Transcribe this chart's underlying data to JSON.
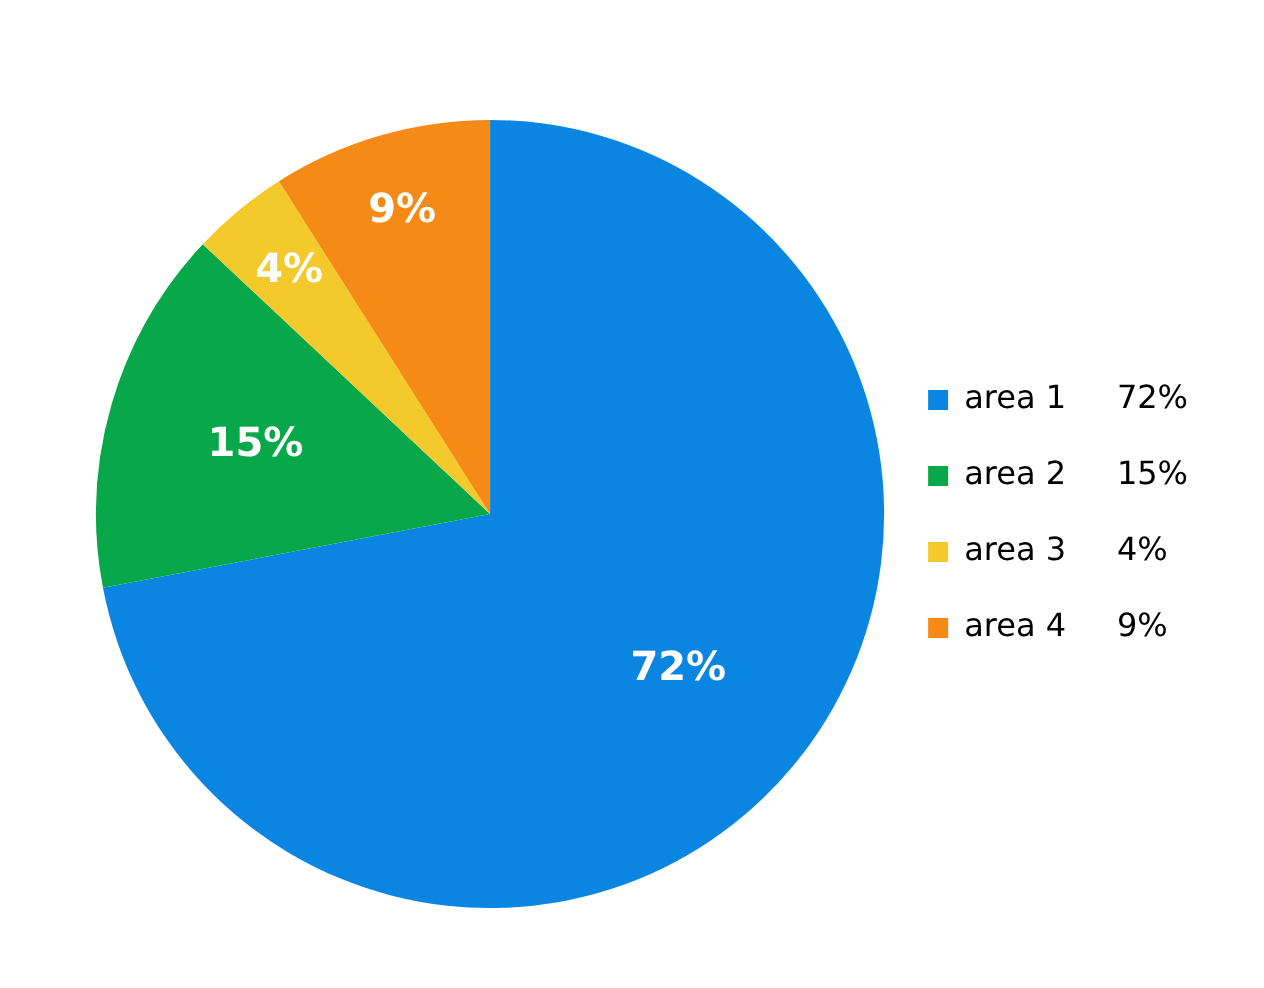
{
  "chart_data": {
    "type": "pie",
    "categories": [
      "area 1",
      "area 2",
      "area 3",
      "area 4"
    ],
    "values": [
      72,
      15,
      4,
      9
    ],
    "colors": [
      "#0a86e2",
      "#08a84a",
      "#f4c92c",
      "#f58a17"
    ],
    "value_labels": [
      "72%",
      "15%",
      "4%",
      "9%"
    ],
    "legend": "right"
  }
}
